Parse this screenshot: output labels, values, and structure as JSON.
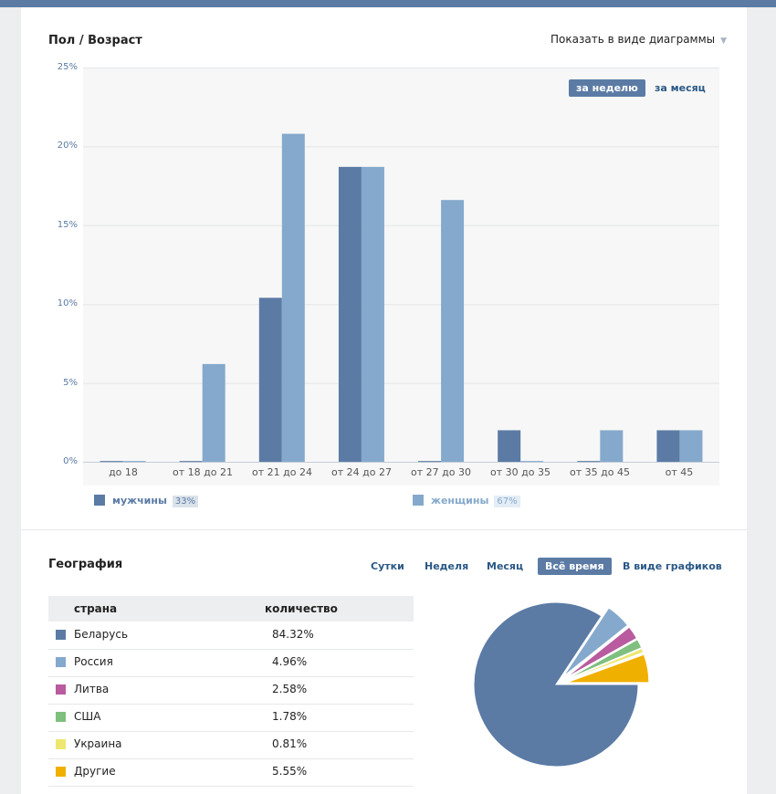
{
  "age_section": {
    "title": "Пол / Возраст",
    "view_toggle": "Показать в виде диаграммы",
    "period_active": "за неделю",
    "period_other": "за месяц",
    "legend": [
      {
        "name": "мужчины",
        "percent": "33%",
        "color": "#5b7ba5"
      },
      {
        "name": "женщины",
        "percent": "67%",
        "color": "#85a9cc"
      }
    ]
  },
  "chart_data": {
    "type": "bar",
    "categories": [
      "до 18",
      "от 18 до 21",
      "от 21 до 24",
      "от 24 до 27",
      "от 27 до 30",
      "от 30 до 35",
      "от 35 до 45",
      "от 45"
    ],
    "series": [
      {
        "name": "мужчины",
        "values": [
          0.05,
          0.05,
          10.4,
          18.7,
          0.05,
          2.0,
          0.05,
          2.0
        ]
      },
      {
        "name": "женщины",
        "values": [
          0.05,
          6.2,
          20.8,
          18.7,
          16.6,
          0.05,
          2.0,
          2.0
        ]
      }
    ],
    "ylim": [
      0,
      25
    ],
    "yticks": [
      "25%",
      "20%",
      "15%",
      "10%",
      "5%",
      "0%"
    ],
    "grid": true,
    "legend_position": "bottom"
  },
  "geo_section": {
    "title": "География",
    "tabs": [
      "Сутки",
      "Неделя",
      "Месяц",
      "Всё время"
    ],
    "active_tab": "Всё время",
    "graph_link": "В виде графиков",
    "columns": [
      "страна",
      "количество"
    ],
    "rows": [
      {
        "country": "Беларусь",
        "value": "84.32%",
        "color": "#5b7ba5"
      },
      {
        "country": "Россия",
        "value": "4.96%",
        "color": "#85a9cc"
      },
      {
        "country": "Литва",
        "value": "2.58%",
        "color": "#b95b9e"
      },
      {
        "country": "США",
        "value": "1.78%",
        "color": "#7fbf7f"
      },
      {
        "country": "Украина",
        "value": "0.81%",
        "color": "#ede76f"
      },
      {
        "country": "Другие",
        "value": "5.55%",
        "color": "#f0b000"
      }
    ]
  },
  "pie_data": {
    "type": "pie",
    "values": [
      84.32,
      4.96,
      2.58,
      1.78,
      0.81,
      5.55
    ],
    "labels": [
      "Беларусь",
      "Россия",
      "Литва",
      "США",
      "Украина",
      "Другие"
    ],
    "colors": [
      "#5b7ba5",
      "#85a9cc",
      "#b95b9e",
      "#7fbf7f",
      "#ede76f",
      "#f0b000"
    ]
  }
}
